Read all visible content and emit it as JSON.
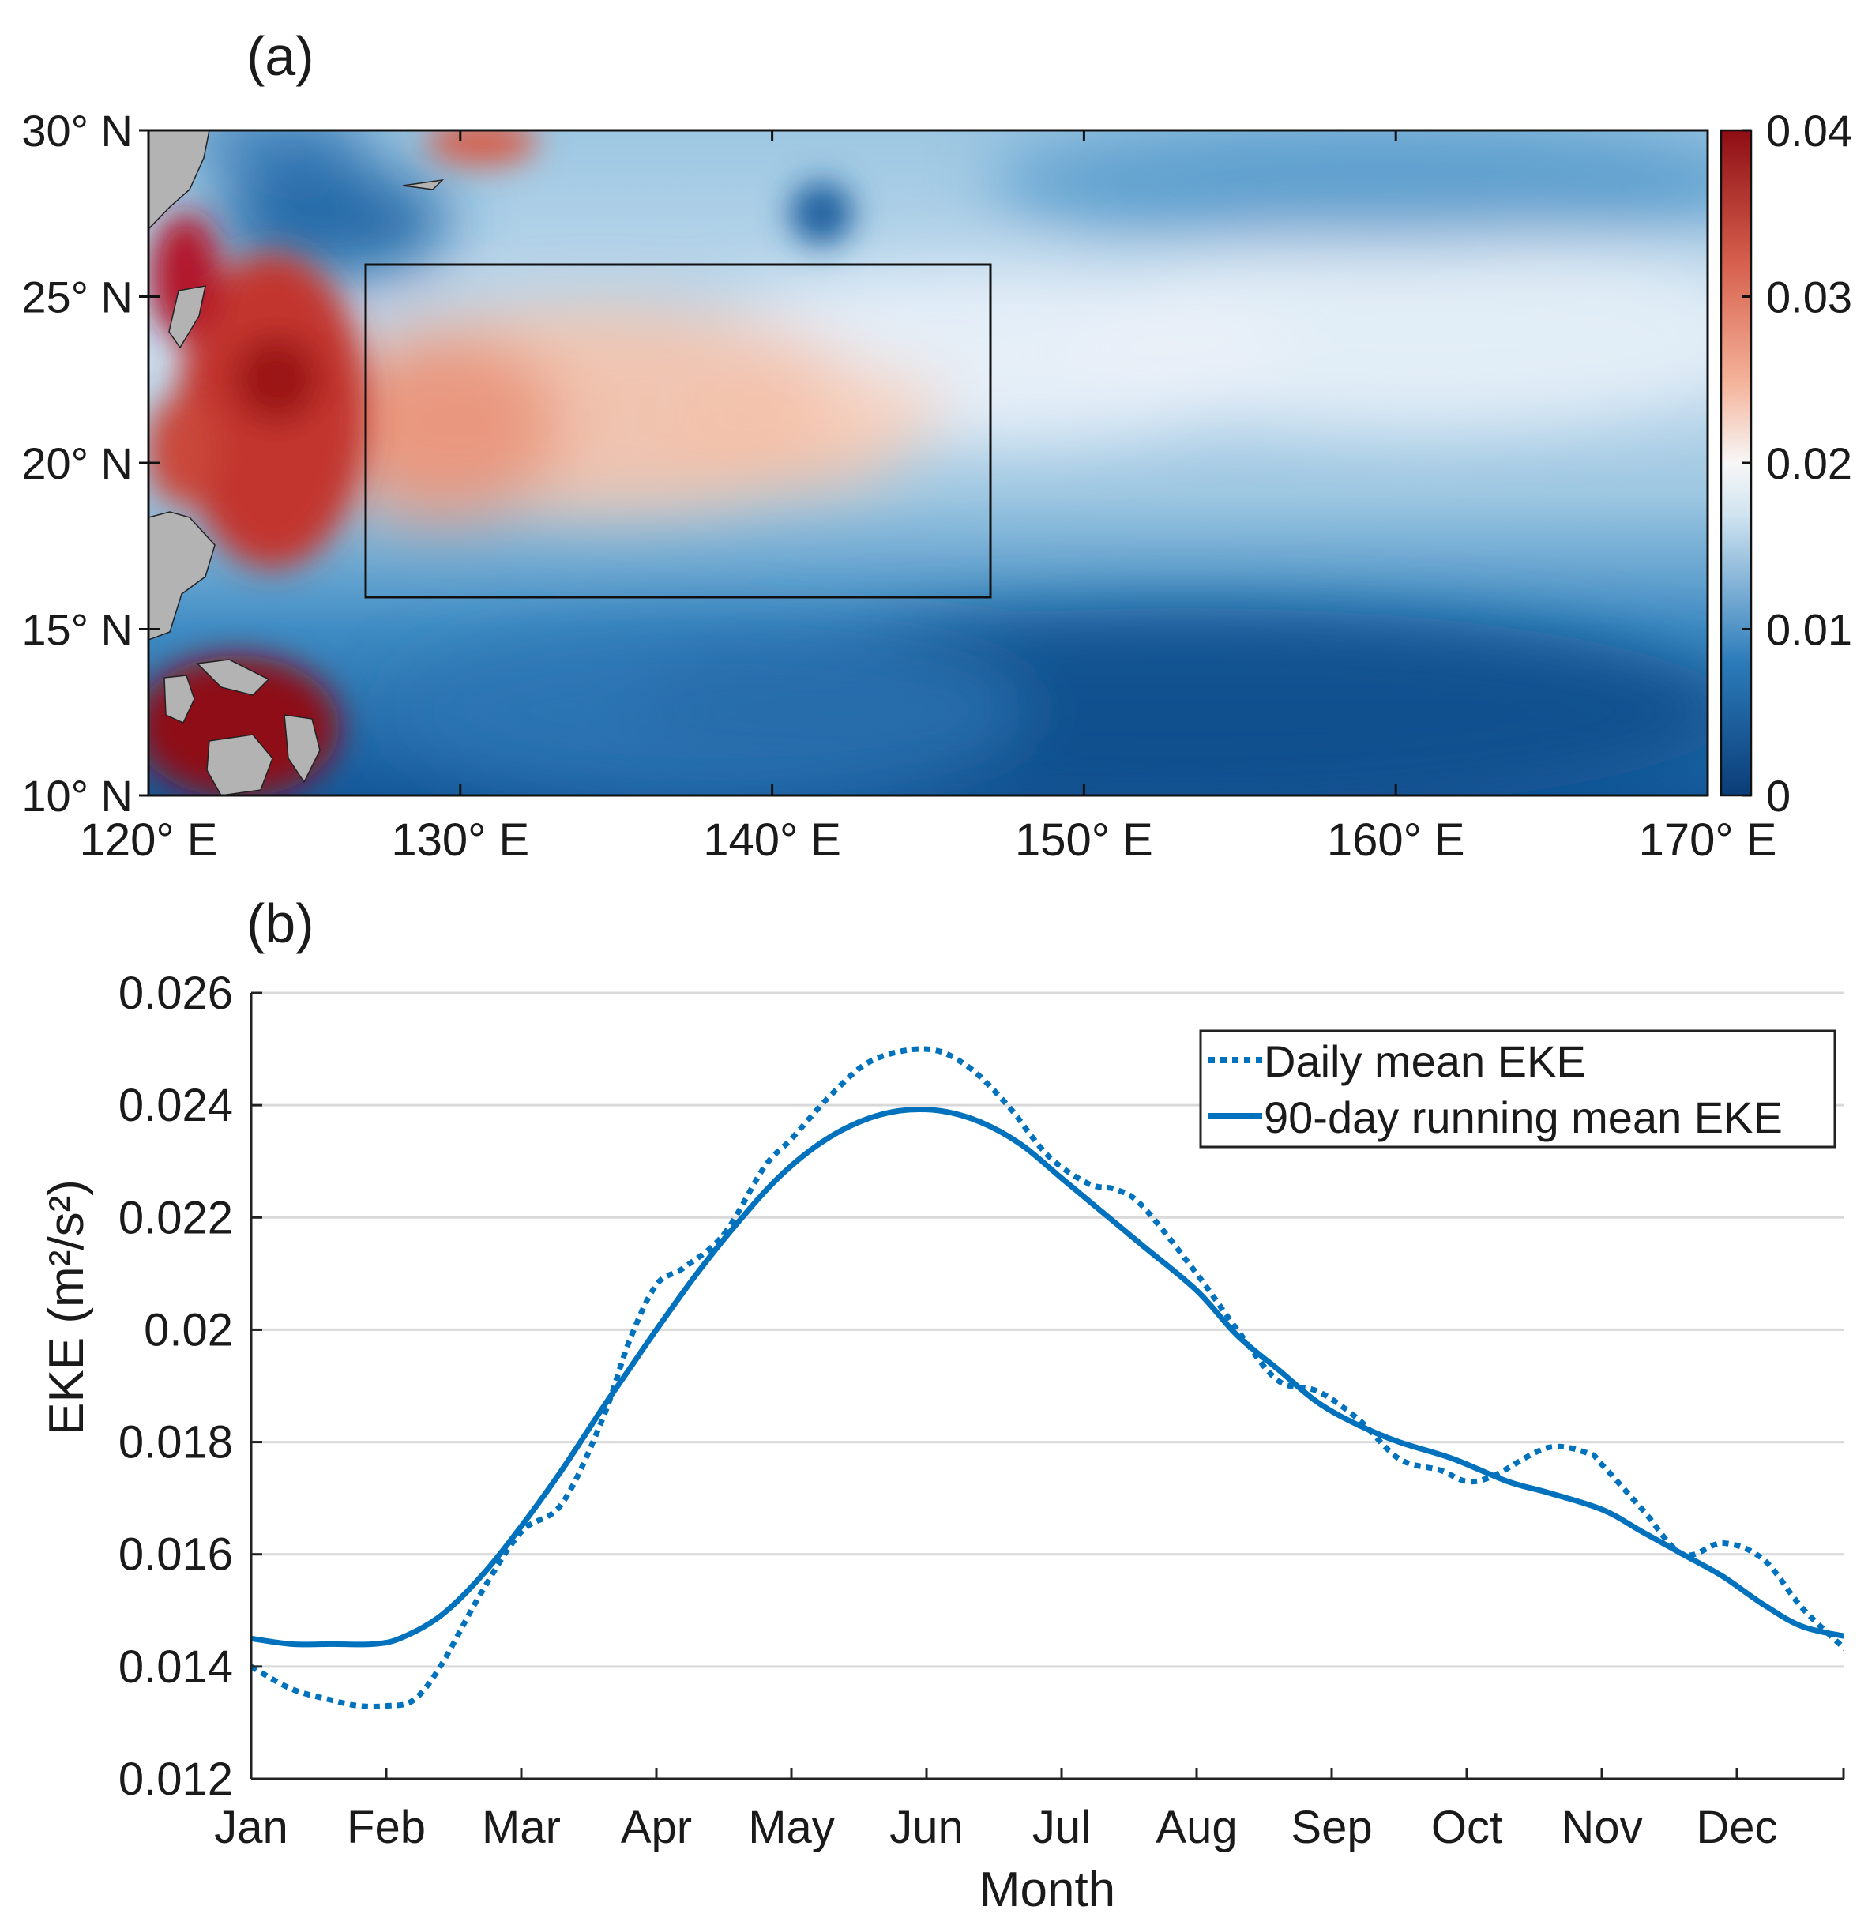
{
  "chart_data": [
    {
      "panel": "(a)",
      "type": "heatmap",
      "x_ticks": [
        "120° E",
        "130° E",
        "140° E",
        "150° E",
        "160° E",
        "170° E"
      ],
      "x_range": [
        120,
        170
      ],
      "y_ticks": [
        "30° N",
        "25° N",
        "20° N",
        "15° N",
        "10° N"
      ],
      "y_range": [
        10,
        30
      ],
      "colorbar": {
        "ticks": [
          "0.04",
          "0.03",
          "0.02",
          "0.01",
          "0"
        ],
        "range": [
          0,
          0.04
        ],
        "colors": [
          "#0b3d78",
          "#2b7bba",
          "#cfe3f0",
          "#f7f7f7",
          "#f5b39b",
          "#d6604d",
          "#8e0d14"
        ]
      },
      "box": {
        "lon": [
          127,
          147
        ],
        "lat": [
          16,
          26
        ]
      },
      "land_color": "#b3b3b3"
    },
    {
      "panel": "(b)",
      "type": "line",
      "categories": [
        "Jan",
        "Feb",
        "Mar",
        "Apr",
        "May",
        "Jun",
        "Jul",
        "Aug",
        "Sep",
        "Oct",
        "Nov",
        "Dec"
      ],
      "xlabel": "Month",
      "ylabel": "EKE (m²/s²)",
      "ylim": [
        0.012,
        0.026
      ],
      "y_ticks": [
        "0.012",
        "0.014",
        "0.016",
        "0.018",
        "0.02",
        "0.022",
        "0.024",
        "0.026"
      ],
      "grid": true,
      "legend_position": "top-right",
      "series": [
        {
          "name": "Daily mean EKE",
          "style": "dotted",
          "color": "#0072bd",
          "x": [
            0,
            0.3,
            0.6,
            0.8,
            1.0,
            1.2,
            1.4,
            1.7,
            2.0,
            2.3,
            2.6,
            2.8,
            3.0,
            3.2,
            3.5,
            3.8,
            4.0,
            4.3,
            4.6,
            5.0,
            5.3,
            5.6,
            5.9,
            6.2,
            6.4,
            6.6,
            7.0,
            7.3,
            7.6,
            7.9,
            8.2,
            8.5,
            8.8,
            9.0,
            9.2,
            9.6,
            9.9,
            10.0,
            10.3,
            10.6,
            10.9,
            11.2,
            11.5,
            11.9
          ],
          "values": [
            0.014,
            0.0136,
            0.0134,
            0.0133,
            0.0133,
            0.0134,
            0.014,
            0.0153,
            0.0164,
            0.0169,
            0.0184,
            0.0198,
            0.0208,
            0.0211,
            0.0217,
            0.0229,
            0.0234,
            0.0242,
            0.0248,
            0.025,
            0.0247,
            0.024,
            0.0231,
            0.0226,
            0.0225,
            0.0222,
            0.021,
            0.02,
            0.0191,
            0.0189,
            0.0184,
            0.0177,
            0.0175,
            0.0173,
            0.0174,
            0.0179,
            0.0178,
            0.0176,
            0.0168,
            0.016,
            0.0162,
            0.0159,
            0.015,
            0.0141
          ]
        },
        {
          "name": "90-day running mean EKE",
          "style": "solid",
          "color": "#0072bd",
          "x": [
            0,
            0.3,
            0.6,
            0.9,
            1.1,
            1.4,
            1.7,
            2.0,
            2.3,
            2.6,
            2.8,
            3.0,
            3.3,
            3.6,
            3.9,
            4.2,
            4.5,
            4.8,
            5.1,
            5.4,
            5.7,
            6.0,
            6.3,
            6.6,
            7.0,
            7.3,
            7.6,
            7.9,
            8.2,
            8.5,
            8.9,
            9.3,
            9.6,
            10.0,
            10.3,
            10.6,
            10.9,
            11.2,
            11.5,
            11.9
          ],
          "values": [
            0.0145,
            0.0144,
            0.0144,
            0.0144,
            0.0145,
            0.0149,
            0.0156,
            0.0165,
            0.0175,
            0.0186,
            0.0193,
            0.02,
            0.021,
            0.0219,
            0.0227,
            0.0233,
            0.0237,
            0.0239,
            0.0239,
            0.0237,
            0.0233,
            0.0227,
            0.0221,
            0.0215,
            0.0207,
            0.0199,
            0.0193,
            0.0187,
            0.0183,
            0.018,
            0.0177,
            0.0173,
            0.0171,
            0.0168,
            0.0164,
            0.016,
            0.0156,
            0.0151,
            0.0147,
            0.0145
          ]
        }
      ]
    }
  ]
}
